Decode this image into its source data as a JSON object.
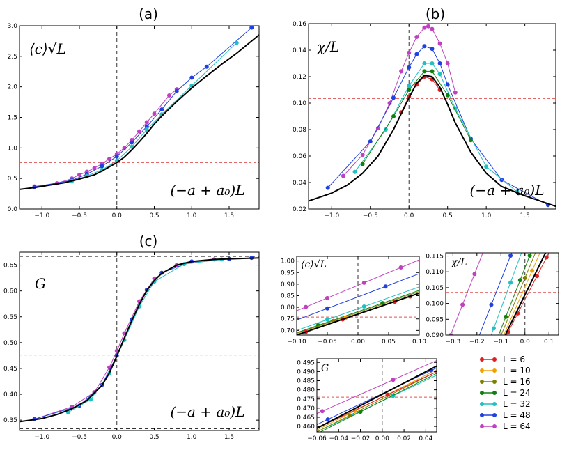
{
  "figure_titles": {
    "a": "(a)",
    "b": "(b)",
    "c": "(c)"
  },
  "chart_data": [
    {
      "id": "a",
      "type": "line",
      "title": "(a)",
      "ylabel": "⟨c⟩√L",
      "xlabel": "(−a + a₀)L",
      "xlim": [
        -1.3,
        1.9
      ],
      "ylim": [
        0.0,
        3.0
      ],
      "xticks": [
        -1.0,
        -0.5,
        0.0,
        0.5,
        1.0,
        1.5
      ],
      "yticks": [
        0.0,
        0.5,
        1.0,
        1.5,
        2.0,
        2.5,
        3.0
      ],
      "xtick_labels": [
        "−1.0",
        "−0.5",
        "0.0",
        "0.5",
        "1.0",
        "1.5"
      ],
      "ytick_labels": [
        "0.0",
        "0.5",
        "1.0",
        "1.5",
        "2.0",
        "2.5",
        "3.0"
      ],
      "hline_red": 0.76,
      "vline": 0.0,
      "scaling_curve": {
        "x": [
          -1.3,
          -1.1,
          -0.9,
          -0.7,
          -0.5,
          -0.3,
          -0.2,
          -0.1,
          0.0,
          0.1,
          0.2,
          0.3,
          0.4,
          0.5,
          0.6,
          0.8,
          1.0,
          1.2,
          1.4,
          1.6,
          1.9
        ],
        "y": [
          0.32,
          0.35,
          0.39,
          0.43,
          0.49,
          0.56,
          0.62,
          0.69,
          0.76,
          0.85,
          0.97,
          1.1,
          1.24,
          1.39,
          1.52,
          1.76,
          1.98,
          2.18,
          2.37,
          2.55,
          2.85
        ]
      },
      "series": [
        {
          "name": "L = 64",
          "color": "#c040c0",
          "x": [
            -1.1,
            -0.8,
            -0.6,
            -0.5,
            -0.4,
            -0.3,
            -0.2,
            -0.1,
            0.0,
            0.1,
            0.2,
            0.3,
            0.4,
            0.5,
            0.7,
            0.8
          ],
          "y": [
            0.37,
            0.42,
            0.5,
            0.56,
            0.61,
            0.67,
            0.74,
            0.82,
            0.9,
            1.0,
            1.13,
            1.27,
            1.42,
            1.56,
            1.86,
            1.96
          ]
        },
        {
          "name": "L = 48",
          "color": "#2040e0",
          "x": [
            -1.1,
            -0.6,
            -0.4,
            -0.2,
            0.0,
            0.2,
            0.4,
            0.6,
            0.8,
            1.0,
            1.2,
            1.8
          ],
          "y": [
            0.36,
            0.47,
            0.57,
            0.7,
            0.86,
            1.09,
            1.35,
            1.63,
            1.93,
            2.15,
            2.33,
            2.97
          ]
        },
        {
          "name": "L = 32",
          "color": "#20c0c0",
          "x": [
            -0.6,
            -0.4,
            -0.2,
            0.0,
            0.2,
            0.4,
            0.6,
            1.0,
            1.6
          ],
          "y": [
            0.46,
            0.54,
            0.64,
            0.79,
            1.02,
            1.3,
            1.55,
            2.02,
            2.72
          ]
        }
      ]
    },
    {
      "id": "b",
      "type": "line",
      "title": "(b)",
      "ylabel": "χ/L",
      "xlabel": "(−a + a₀)L",
      "xlim": [
        -1.3,
        1.9
      ],
      "ylim": [
        0.02,
        0.16
      ],
      "xticks": [
        -1.0,
        -0.5,
        0.0,
        0.5,
        1.0,
        1.5
      ],
      "yticks": [
        0.02,
        0.04,
        0.06,
        0.08,
        0.1,
        0.12,
        0.14,
        0.16
      ],
      "xtick_labels": [
        "−1.0",
        "−0.5",
        "0.0",
        "0.5",
        "1.0",
        "1.5"
      ],
      "ytick_labels": [
        "0.02",
        "0.04",
        "0.06",
        "0.08",
        "0.10",
        "0.12",
        "0.14",
        "0.16"
      ],
      "hline_red": 0.1035,
      "vline": 0.0,
      "scaling_curve": {
        "x": [
          -1.3,
          -1.0,
          -0.8,
          -0.6,
          -0.4,
          -0.2,
          0.0,
          0.1,
          0.2,
          0.3,
          0.4,
          0.5,
          0.6,
          0.8,
          1.0,
          1.2,
          1.5,
          1.9
        ],
        "y": [
          0.026,
          0.032,
          0.038,
          0.047,
          0.06,
          0.08,
          0.104,
          0.115,
          0.121,
          0.12,
          0.112,
          0.099,
          0.085,
          0.063,
          0.047,
          0.037,
          0.03,
          0.022
        ]
      },
      "series": [
        {
          "name": "L = 64",
          "color": "#c040c0",
          "x": [
            -0.85,
            -0.6,
            -0.4,
            -0.25,
            -0.1,
            0.0,
            0.1,
            0.2,
            0.25,
            0.3,
            0.4,
            0.5,
            0.6
          ],
          "y": [
            0.045,
            0.061,
            0.081,
            0.1,
            0.124,
            0.138,
            0.15,
            0.157,
            0.158,
            0.156,
            0.145,
            0.13,
            0.108
          ]
        },
        {
          "name": "L = 48",
          "color": "#2040e0",
          "x": [
            -1.05,
            -0.5,
            -0.2,
            0.0,
            0.1,
            0.2,
            0.3,
            0.4,
            0.5,
            0.8,
            1.2,
            1.8
          ],
          "y": [
            0.036,
            0.071,
            0.104,
            0.127,
            0.137,
            0.143,
            0.141,
            0.13,
            0.114,
            0.073,
            0.042,
            0.023
          ]
        },
        {
          "name": "L = 32",
          "color": "#20c0c0",
          "x": [
            -0.7,
            -0.3,
            0.0,
            0.2,
            0.3,
            0.4,
            0.6,
            1.0,
            1.4
          ],
          "y": [
            0.048,
            0.08,
            0.113,
            0.13,
            0.13,
            0.122,
            0.096,
            0.052,
            0.033
          ]
        },
        {
          "name": "L = 24",
          "color": "#108010",
          "x": [
            -0.6,
            -0.2,
            0.0,
            0.2,
            0.3,
            0.5,
            0.8
          ],
          "y": [
            0.054,
            0.09,
            0.11,
            0.124,
            0.124,
            0.106,
            0.072
          ]
        },
        {
          "name": "L = 6",
          "color": "#e02020",
          "x": [
            -0.1,
            0.0,
            0.1,
            0.2,
            0.3,
            0.4
          ],
          "y": [
            0.093,
            0.105,
            0.114,
            0.12,
            0.118,
            0.11
          ]
        }
      ]
    },
    {
      "id": "c",
      "type": "line",
      "title": "(c)",
      "ylabel": "G",
      "xlabel": "(−a + a₀)L",
      "xlim": [
        -1.3,
        1.9
      ],
      "ylim": [
        0.33,
        0.675
      ],
      "xticks": [
        -1.0,
        -0.5,
        0.0,
        0.5,
        1.0,
        1.5
      ],
      "yticks": [
        0.35,
        0.4,
        0.45,
        0.5,
        0.55,
        0.6,
        0.65
      ],
      "xtick_labels": [
        "−1.0",
        "−0.5",
        "0.0",
        "0.5",
        "1.0",
        "1.5"
      ],
      "ytick_labels": [
        "0.35",
        "0.40",
        "0.45",
        "0.50",
        "0.55",
        "0.60",
        "0.65"
      ],
      "hline_red": 0.476,
      "hlines_black": [
        0.3333,
        0.6667
      ],
      "vline": 0.0,
      "scaling_curve": {
        "x": [
          -1.3,
          -1.0,
          -0.8,
          -0.6,
          -0.4,
          -0.2,
          -0.1,
          0.0,
          0.1,
          0.2,
          0.3,
          0.4,
          0.5,
          0.6,
          0.8,
          1.0,
          1.3,
          1.9
        ],
        "y": [
          0.347,
          0.353,
          0.361,
          0.372,
          0.388,
          0.417,
          0.441,
          0.474,
          0.509,
          0.543,
          0.574,
          0.601,
          0.62,
          0.634,
          0.65,
          0.657,
          0.661,
          0.664
        ]
      },
      "series": [
        {
          "name": "L = 64",
          "color": "#c040c0",
          "x": [
            -1.1,
            -0.6,
            -0.3,
            -0.1,
            0.0,
            0.1,
            0.3,
            0.5,
            0.8,
            1.3
          ],
          "y": [
            0.352,
            0.376,
            0.404,
            0.452,
            0.484,
            0.518,
            0.58,
            0.624,
            0.65,
            0.661
          ]
        },
        {
          "name": "L = 48",
          "color": "#2040e0",
          "x": [
            -1.1,
            -0.5,
            -0.2,
            0.0,
            0.2,
            0.4,
            0.6,
            1.0,
            1.5,
            1.8
          ],
          "y": [
            0.352,
            0.378,
            0.418,
            0.475,
            0.545,
            0.602,
            0.635,
            0.657,
            0.662,
            0.664
          ]
        },
        {
          "name": "L = 32",
          "color": "#20c0c0",
          "x": [
            -0.65,
            -0.35,
            -0.1,
            0.1,
            0.3,
            0.5,
            0.9,
            1.4
          ],
          "y": [
            0.365,
            0.39,
            0.44,
            0.505,
            0.57,
            0.618,
            0.652,
            0.661
          ]
        }
      ]
    },
    {
      "id": "inset-c",
      "type": "line",
      "ylabel": "⟨c⟩√L",
      "xlim": [
        -0.1,
        0.1
      ],
      "ylim": [
        0.68,
        1.02
      ],
      "xticks": [
        -0.1,
        -0.05,
        0.0,
        0.05,
        0.1
      ],
      "yticks": [
        0.7,
        0.75,
        0.8,
        0.85,
        0.9,
        0.95,
        1.0
      ],
      "xtick_labels": [
        "−0.10",
        "−0.05",
        "0.00",
        "0.05",
        "0.10"
      ],
      "ytick_labels": [
        "0.70",
        "0.75",
        "0.80",
        "0.85",
        "0.90",
        "0.95",
        "1.00"
      ],
      "hline_red": 0.758,
      "vline": 0.0,
      "series": [
        {
          "name": "L = 64",
          "color": "#c040c0",
          "x": [
            -0.1,
            0.1
          ],
          "y": [
            0.785,
            1.005
          ],
          "markers": [
            -0.085,
            -0.05,
            0.01,
            0.07
          ]
        },
        {
          "name": "L = 48",
          "color": "#2040e0",
          "x": [
            -0.1,
            0.1
          ],
          "y": [
            0.745,
            0.945
          ],
          "markers": [
            -0.05,
            0.045
          ]
        },
        {
          "name": "L = 32",
          "color": "#20c0c0",
          "x": [
            -0.1,
            0.1
          ],
          "y": [
            0.7,
            0.888
          ],
          "markers": [
            -0.05,
            0.01
          ]
        },
        {
          "name": "L = 24",
          "color": "#108010",
          "x": [
            -0.1,
            0.1
          ],
          "y": [
            0.69,
            0.873
          ],
          "markers": [
            -0.065,
            0.04
          ]
        },
        {
          "name": "L = 16",
          "color": "#808000",
          "x": [
            -0.1,
            0.1
          ],
          "y": [
            0.687,
            0.868
          ],
          "markers": [
            -0.04
          ]
        },
        {
          "name": "L = 10",
          "color": "#f0a000",
          "x": [
            -0.1,
            0.1
          ],
          "y": [
            0.683,
            0.862
          ],
          "markers": [
            -0.02
          ]
        },
        {
          "name": "L = 6",
          "color": "#e02020",
          "x": [
            -0.1,
            0.1
          ],
          "y": [
            0.68,
            0.86
          ],
          "markers": [
            -0.085,
            -0.025,
            0.06,
            0.085
          ]
        },
        {
          "name": "scaling",
          "color": "#000000",
          "x": [
            -0.1,
            0.1
          ],
          "y": [
            0.68,
            0.861
          ]
        }
      ]
    },
    {
      "id": "inset-chi",
      "type": "line",
      "ylabel": "χ/L",
      "xlim": [
        -0.33,
        0.14
      ],
      "ylim": [
        0.09,
        0.116
      ],
      "xticks": [
        -0.3,
        -0.2,
        -0.1,
        0.0,
        0.1
      ],
      "yticks": [
        0.09,
        0.095,
        0.1,
        0.105,
        0.11,
        0.115
      ],
      "xtick_labels": [
        "−0.3",
        "−0.2",
        "−0.1",
        "0.0",
        "0.1"
      ],
      "ytick_labels": [
        "0.090",
        "0.095",
        "0.100",
        "0.105",
        "0.110",
        "0.115"
      ],
      "hline_red": 0.1035,
      "vline": 0.0,
      "series": [
        {
          "name": "L = 64",
          "color": "#c040c0",
          "x": [
            -0.32,
            -0.16
          ],
          "y": [
            0.088,
            0.119
          ],
          "markers": [
            -0.31,
            -0.26,
            -0.21
          ]
        },
        {
          "name": "L = 48",
          "color": "#2040e0",
          "x": [
            -0.2,
            -0.04
          ],
          "y": [
            0.088,
            0.119
          ],
          "markers": [
            -0.14,
            -0.06
          ]
        },
        {
          "name": "L = 32",
          "color": "#20c0c0",
          "x": [
            -0.15,
            0.0
          ],
          "y": [
            0.088,
            0.119
          ],
          "markers": [
            -0.13,
            -0.06
          ]
        },
        {
          "name": "L = 24",
          "color": "#108010",
          "x": [
            -0.12,
            0.04
          ],
          "y": [
            0.088,
            0.119
          ],
          "markers": [
            -0.08,
            -0.02,
            0.02
          ]
        },
        {
          "name": "L = 16",
          "color": "#808000",
          "x": [
            -0.11,
            0.06
          ],
          "y": [
            0.088,
            0.119
          ],
          "markers": [
            0.0
          ]
        },
        {
          "name": "L = 10",
          "color": "#f0a000",
          "x": [
            -0.1,
            0.08
          ],
          "y": [
            0.088,
            0.119
          ],
          "markers": [
            0.03
          ]
        },
        {
          "name": "L = 6",
          "color": "#e02020",
          "x": [
            -0.09,
            0.12
          ],
          "y": [
            0.088,
            0.119
          ],
          "markers": [
            -0.07,
            -0.03,
            0.05,
            0.09,
            0.12
          ]
        },
        {
          "name": "scaling",
          "color": "#000000",
          "x": [
            -0.095,
            0.105
          ],
          "y": [
            0.088,
            0.119
          ]
        }
      ]
    },
    {
      "id": "inset-g",
      "type": "line",
      "ylabel": "G",
      "xlim": [
        -0.06,
        0.05
      ],
      "ylim": [
        0.457,
        0.497
      ],
      "xticks": [
        -0.06,
        -0.04,
        -0.02,
        0.0,
        0.02,
        0.04
      ],
      "yticks": [
        0.46,
        0.465,
        0.47,
        0.475,
        0.48,
        0.485,
        0.49,
        0.495
      ],
      "xtick_labels": [
        "−0.06",
        "−0.04",
        "−0.02",
        "0.00",
        "0.02",
        "0.04"
      ],
      "ytick_labels": [
        "0.460",
        "0.465",
        "0.470",
        "0.475",
        "0.480",
        "0.485",
        "0.490",
        "0.495"
      ],
      "hline_red": 0.476,
      "vline": 0.0,
      "series": [
        {
          "name": "L = 64",
          "color": "#c040c0",
          "x": [
            -0.06,
            0.05
          ],
          "y": [
            0.467,
            0.496
          ],
          "markers": [
            -0.055,
            0.01
          ]
        },
        {
          "name": "L = 48",
          "color": "#2040e0",
          "x": [
            -0.06,
            0.05
          ],
          "y": [
            0.461,
            0.492
          ],
          "markers": [
            -0.05,
            0.045
          ]
        },
        {
          "name": "L = 32",
          "color": "#20c0c0",
          "x": [
            -0.06,
            0.05
          ],
          "y": [
            0.457,
            0.488
          ],
          "markers": [
            0.01
          ]
        },
        {
          "name": "L = 24",
          "color": "#108010",
          "x": [
            -0.06,
            0.05
          ],
          "y": [
            0.456,
            0.489
          ],
          "markers": [
            -0.02
          ]
        },
        {
          "name": "L = 16",
          "color": "#808000",
          "x": [
            -0.06,
            0.05
          ],
          "y": [
            0.457,
            0.49
          ],
          "markers": [
            -0.03
          ]
        },
        {
          "name": "L = 10",
          "color": "#f0a000",
          "x": [
            -0.06,
            0.05
          ],
          "y": [
            0.458,
            0.491
          ],
          "markers": [
            -0.025
          ]
        },
        {
          "name": "L = 6",
          "color": "#e02020",
          "x": [
            -0.06,
            0.05
          ],
          "y": [
            0.459,
            0.49
          ],
          "markers": [
            0.005
          ]
        },
        {
          "name": "scaling",
          "color": "#000000",
          "x": [
            -0.06,
            0.05
          ],
          "y": [
            0.459,
            0.493
          ]
        }
      ]
    }
  ],
  "legend": [
    {
      "label": "L = 6",
      "color": "#e02020"
    },
    {
      "label": "L = 10",
      "color": "#f0a000"
    },
    {
      "label": "L = 16",
      "color": "#808000"
    },
    {
      "label": "L = 24",
      "color": "#108010"
    },
    {
      "label": "L = 32",
      "color": "#20c0c0"
    },
    {
      "label": "L = 48",
      "color": "#2040e0"
    },
    {
      "label": "L = 64",
      "color": "#c040c0"
    }
  ]
}
